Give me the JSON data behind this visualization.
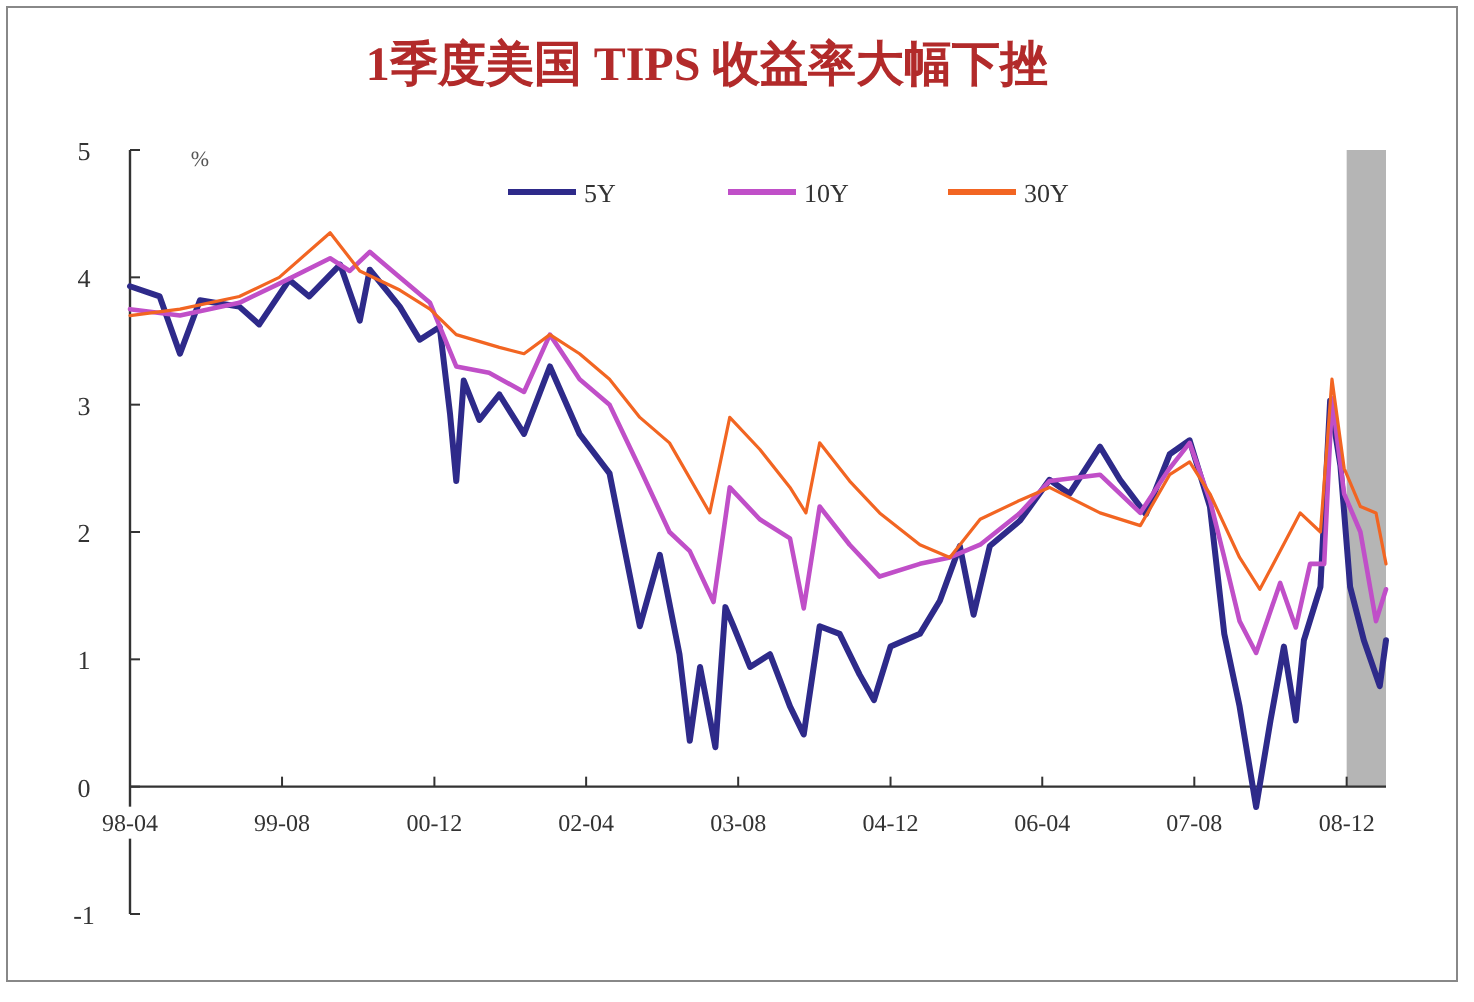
{
  "chart_data": {
    "type": "line",
    "title": "1季度美国 TIPS 收益率大幅下挫",
    "ylabel": "%",
    "xlim": [
      "1998-04-01",
      "2009-04-06"
    ],
    "ylim": [
      -1,
      5
    ],
    "yticks": [
      -1,
      0,
      1,
      2,
      3,
      4,
      5
    ],
    "xticks": [
      {
        "value": "1998-04-01",
        "label": "98-04"
      },
      {
        "value": "1999-08-01",
        "label": "99-08"
      },
      {
        "value": "2000-12-01",
        "label": "00-12"
      },
      {
        "value": "2002-04-01",
        "label": "02-04"
      },
      {
        "value": "2003-08-01",
        "label": "03-08"
      },
      {
        "value": "2004-12-01",
        "label": "04-12"
      },
      {
        "value": "2006-04-01",
        "label": "06-04"
      },
      {
        "value": "2007-08-01",
        "label": "07-08"
      },
      {
        "value": "2008-12-01",
        "label": "08-12"
      }
    ],
    "legend": "top",
    "bands": [
      {
        "axis": "x",
        "from": "2008-12-01",
        "to": "2009-04-06",
        "color": "#b5b5b5"
      }
    ],
    "series": [
      {
        "name": "5Y",
        "color": "#2e2a8a",
        "x": [
          "1998-04-01",
          "1998-07-05",
          "1998-09-08",
          "1998-11-11",
          "1999-03-17",
          "1999-05-20",
          "1999-08-24",
          "1999-10-27",
          "2000-02-03",
          "2000-04-06",
          "2000-05-08",
          "2000-08-12",
          "2000-10-15",
          "2000-12-18",
          "2001-01-20",
          "2001-02-09",
          "2001-03-05",
          "2001-04-24",
          "2001-06-27",
          "2001-09-14",
          "2001-12-06",
          "2002-03-11",
          "2002-06-15",
          "2002-08-18",
          "2002-09-20",
          "2002-11-23",
          "2003-01-25",
          "2003-02-27",
          "2003-04-01",
          "2003-05-20",
          "2003-06-21",
          "2003-07-17",
          "2003-09-08",
          "2003-11-11",
          "2004-01-14",
          "2004-02-27",
          "2004-04-18",
          "2004-06-21",
          "2004-08-24",
          "2004-10-09",
          "2004-12-01",
          "2005-03-05",
          "2005-05-08",
          "2005-07-11",
          "2005-08-24",
          "2005-10-15",
          "2006-01-20",
          "2006-04-24",
          "2006-06-27",
          "2006-10-03",
          "2006-12-06",
          "2007-02-27",
          "2007-05-14",
          "2007-07-17",
          "2007-09-20",
          "2007-11-05",
          "2007-12-24",
          "2008-02-15",
          "2008-04-01",
          "2008-05-14",
          "2008-06-21",
          "2008-07-17",
          "2008-09-08",
          "2008-10-09",
          "2008-11-11",
          "2008-12-12",
          "2009-01-25",
          "2009-03-17",
          "2009-04-06"
        ],
        "values": [
          3.93,
          3.85,
          3.4,
          3.82,
          3.77,
          3.63,
          3.98,
          3.85,
          4.1,
          3.66,
          4.06,
          3.77,
          3.51,
          3.61,
          2.93,
          2.4,
          3.19,
          2.88,
          3.08,
          2.77,
          3.3,
          2.77,
          2.46,
          1.67,
          1.26,
          1.82,
          1.04,
          0.36,
          0.94,
          0.31,
          1.41,
          1.26,
          0.94,
          1.04,
          0.63,
          0.41,
          1.26,
          1.2,
          0.88,
          0.68,
          1.1,
          1.2,
          1.46,
          1.89,
          1.35,
          1.89,
          2.09,
          2.41,
          2.3,
          2.67,
          2.41,
          2.14,
          2.61,
          2.72,
          2.2,
          1.2,
          0.63,
          -0.16,
          0.52,
          1.1,
          0.52,
          1.15,
          1.57,
          3.03,
          2.52,
          1.57,
          1.15,
          0.79,
          1.15
        ]
      },
      {
        "name": "10Y",
        "color": "#c04fc8",
        "x": [
          "1998-04-01",
          "1998-09-08",
          "1999-03-17",
          "1999-07-23",
          "2000-01-02",
          "2000-03-05",
          "2000-05-08",
          "2000-08-12",
          "2000-11-17",
          "2001-02-09",
          "2001-05-25",
          "2001-09-14",
          "2001-12-06",
          "2002-03-11",
          "2002-06-15",
          "2002-09-20",
          "2002-12-24",
          "2003-02-27",
          "2003-05-14",
          "2003-07-05",
          "2003-10-09",
          "2004-01-14",
          "2004-02-27",
          "2004-04-18",
          "2004-07-23",
          "2004-10-27",
          "2005-03-05",
          "2005-06-09",
          "2005-09-14",
          "2006-01-20",
          "2006-04-24",
          "2006-10-03",
          "2007-02-09",
          "2007-05-14",
          "2007-07-17",
          "2007-09-20",
          "2007-11-05",
          "2007-12-24",
          "2008-02-15",
          "2008-05-02",
          "2008-06-21",
          "2008-08-06",
          "2008-09-20",
          "2008-10-15",
          "2008-11-23",
          "2009-01-14",
          "2009-03-05",
          "2009-04-06"
        ],
        "values": [
          3.75,
          3.7,
          3.8,
          3.95,
          4.15,
          4.05,
          4.2,
          4.0,
          3.8,
          3.3,
          3.25,
          3.1,
          3.55,
          3.2,
          3.0,
          2.5,
          2.0,
          1.85,
          1.45,
          2.35,
          2.1,
          1.95,
          1.4,
          2.2,
          1.9,
          1.65,
          1.75,
          1.8,
          1.9,
          2.15,
          2.4,
          2.45,
          2.15,
          2.5,
          2.7,
          2.25,
          1.8,
          1.3,
          1.05,
          1.6,
          1.25,
          1.75,
          1.75,
          3.05,
          2.3,
          2.0,
          1.3,
          1.55
        ]
      },
      {
        "name": "30Y",
        "color": "#f26522",
        "x": [
          "1998-04-01",
          "1998-09-08",
          "1999-03-17",
          "1999-07-23",
          "2000-01-02",
          "2000-04-06",
          "2000-08-12",
          "2000-11-17",
          "2001-02-09",
          "2001-06-27",
          "2001-09-14",
          "2001-12-06",
          "2002-03-11",
          "2002-06-15",
          "2002-09-20",
          "2002-12-24",
          "2003-05-02",
          "2003-07-05",
          "2003-10-09",
          "2004-01-14",
          "2004-03-05",
          "2004-04-18",
          "2004-07-23",
          "2004-10-27",
          "2005-03-05",
          "2005-06-09",
          "2005-09-14",
          "2006-01-20",
          "2006-04-24",
          "2006-10-03",
          "2007-02-09",
          "2007-05-14",
          "2007-07-17",
          "2007-09-20",
          "2007-12-24",
          "2008-02-27",
          "2008-05-02",
          "2008-07-05",
          "2008-09-08",
          "2008-10-15",
          "2008-11-23",
          "2009-01-14",
          "2009-03-05",
          "2009-04-06"
        ],
        "values": [
          3.7,
          3.75,
          3.85,
          4.0,
          4.35,
          4.05,
          3.9,
          3.75,
          3.55,
          3.45,
          3.4,
          3.55,
          3.4,
          3.2,
          2.9,
          2.7,
          2.15,
          2.9,
          2.65,
          2.35,
          2.15,
          2.7,
          2.4,
          2.15,
          1.9,
          1.8,
          2.1,
          2.25,
          2.35,
          2.15,
          2.05,
          2.45,
          2.55,
          2.3,
          1.8,
          1.55,
          1.85,
          2.15,
          2.0,
          3.2,
          2.5,
          2.2,
          2.15,
          1.75
        ]
      }
    ]
  }
}
